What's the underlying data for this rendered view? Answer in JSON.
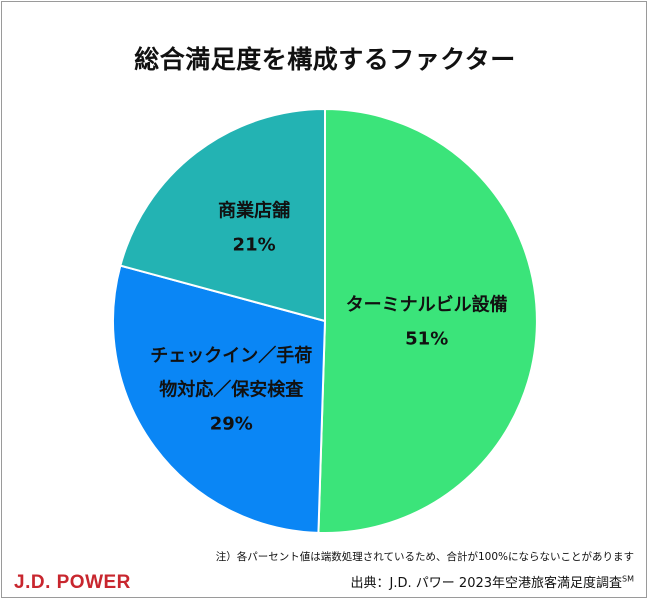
{
  "title": "総合満足度を構成するファクター",
  "note": "注）各パーセント値は端数処理されているため、合計が100%にならないことがあります",
  "source": {
    "text": "出典：J.D. パワー 2023年空港旅客満足度調査",
    "mark": "SM"
  },
  "logo": "J.D. POWER",
  "chart_data": {
    "type": "pie",
    "title": "総合満足度を構成するファクター",
    "start_angle_deg": 0,
    "direction": "clockwise",
    "slices": [
      {
        "label_lines": [
          "ターミナルビル設備"
        ],
        "value": 51,
        "value_label": "51%",
        "color": "#3be47a"
      },
      {
        "label_lines": [
          "チェックイン／手荷",
          "物対応／保安検査"
        ],
        "value": 29,
        "value_label": "29%",
        "color": "#0a86f5"
      },
      {
        "label_lines": [
          "商業店舗"
        ],
        "value": 21,
        "value_label": "21%",
        "color": "#23b3b3"
      }
    ]
  }
}
